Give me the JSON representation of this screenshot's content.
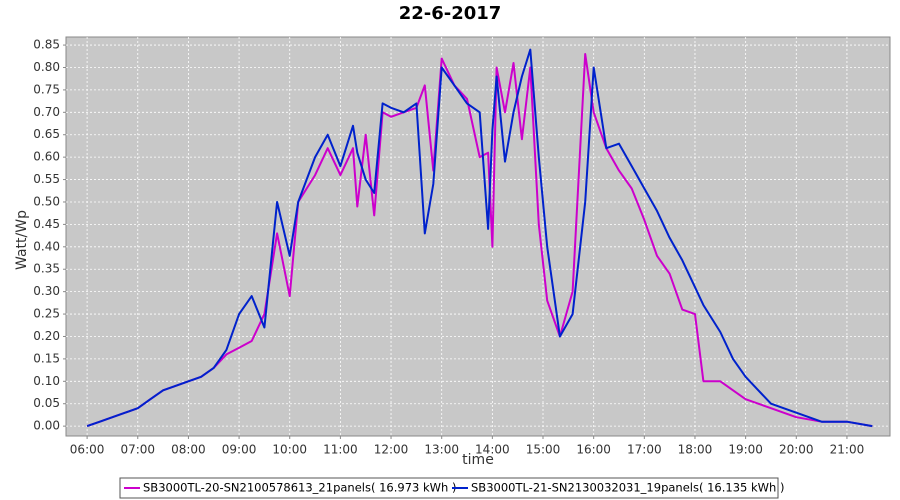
{
  "chart_data": {
    "type": "line",
    "title": "22-6-2017",
    "x_label": "time",
    "y_label": "Watt/Wp",
    "x": [
      "06:00",
      "06:15",
      "06:30",
      "06:45",
      "07:00",
      "07:15",
      "07:30",
      "07:45",
      "08:00",
      "08:15",
      "08:30",
      "08:45",
      "09:00",
      "09:15",
      "09:30",
      "09:45",
      "10:00",
      "10:10",
      "10:30",
      "10:45",
      "11:00",
      "11:15",
      "11:20",
      "11:30",
      "11:40",
      "11:50",
      "12:00",
      "12:15",
      "12:30",
      "12:40",
      "12:50",
      "13:00",
      "13:15",
      "13:30",
      "13:45",
      "13:55",
      "14:00",
      "14:05",
      "14:15",
      "14:25",
      "14:35",
      "14:45",
      "14:55",
      "15:05",
      "15:20",
      "15:35",
      "15:50",
      "16:00",
      "16:15",
      "16:30",
      "16:45",
      "17:00",
      "17:15",
      "17:30",
      "17:45",
      "18:00",
      "18:10",
      "18:30",
      "18:45",
      "19:00",
      "19:15",
      "19:30",
      "19:45",
      "20:00",
      "20:30",
      "21:00",
      "21:30"
    ],
    "series": [
      {
        "name": "SB3000TL-20-SN2100578613_21panels( 16.973 kWh )",
        "color": "#cc00cc",
        "values": [
          0.0,
          0.01,
          0.02,
          0.03,
          0.04,
          0.06,
          0.08,
          0.09,
          0.1,
          0.11,
          0.13,
          0.16,
          0.175,
          0.19,
          0.25,
          0.43,
          0.29,
          0.5,
          0.56,
          0.62,
          0.56,
          0.62,
          0.49,
          0.65,
          0.47,
          0.7,
          0.69,
          0.7,
          0.71,
          0.76,
          0.57,
          0.82,
          0.76,
          0.73,
          0.6,
          0.61,
          0.4,
          0.8,
          0.7,
          0.81,
          0.64,
          0.8,
          0.45,
          0.28,
          0.2,
          0.3,
          0.83,
          0.7,
          0.62,
          0.57,
          0.53,
          0.46,
          0.38,
          0.34,
          0.26,
          0.25,
          0.1,
          0.1,
          0.08,
          0.06,
          0.05,
          0.04,
          0.03,
          0.02,
          0.01,
          0.01,
          0.0
        ]
      },
      {
        "name": "SB3000TL-21-SN2130032031_19panels( 16.135 kWh )",
        "color": "#0022cc",
        "values": [
          0.0,
          0.01,
          0.02,
          0.03,
          0.04,
          0.06,
          0.08,
          0.09,
          0.1,
          0.11,
          0.13,
          0.17,
          0.25,
          0.29,
          0.22,
          0.5,
          0.38,
          0.5,
          0.6,
          0.65,
          0.58,
          0.67,
          0.61,
          0.55,
          0.52,
          0.72,
          0.71,
          0.7,
          0.72,
          0.43,
          0.54,
          0.8,
          0.76,
          0.72,
          0.7,
          0.44,
          0.66,
          0.78,
          0.59,
          0.7,
          0.78,
          0.84,
          0.6,
          0.4,
          0.2,
          0.25,
          0.5,
          0.8,
          0.62,
          0.63,
          0.58,
          0.53,
          0.48,
          0.42,
          0.37,
          0.31,
          0.27,
          0.21,
          0.15,
          0.11,
          0.08,
          0.05,
          0.04,
          0.03,
          0.01,
          0.01,
          0.0
        ]
      }
    ],
    "xlim": [
      "05:35",
      "21:51"
    ],
    "xticks": [
      "06:00",
      "07:00",
      "08:00",
      "09:00",
      "10:00",
      "11:00",
      "12:00",
      "13:00",
      "14:00",
      "15:00",
      "16:00",
      "17:00",
      "18:00",
      "19:00",
      "20:00",
      "21:00"
    ],
    "ylim": [
      -0.022,
      0.868
    ],
    "yticks": [
      {
        "value": 0,
        "label": "0.00"
      },
      0.05,
      {
        "value": 0.1,
        "label": "0.10"
      },
      0.15,
      {
        "value": 0.2,
        "label": "0.20"
      },
      0.25,
      {
        "value": 0.3,
        "label": "0.30"
      },
      0.35,
      {
        "value": 0.4,
        "label": "0.40"
      },
      0.45,
      {
        "value": 0.5,
        "label": "0.50"
      },
      0.55,
      {
        "value": 0.6,
        "label": "0.60"
      },
      0.65,
      {
        "value": 0.7,
        "label": "0.70"
      },
      0.75,
      {
        "value": 0.8,
        "label": "0.80"
      },
      0.85
    ],
    "grid": true,
    "legend": "bottom"
  }
}
